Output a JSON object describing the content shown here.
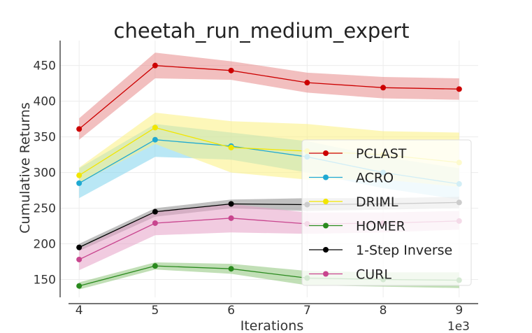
{
  "chart_data": {
    "type": "line",
    "title": "cheetah_run_medium_expert",
    "xlabel": "Iterations",
    "ylabel": "Cumulative Returns",
    "x_offset_label": "1e3",
    "x": [
      4,
      5,
      6,
      7,
      8,
      9
    ],
    "xlim": [
      3.75,
      9.25
    ],
    "ylim": [
      125,
      485
    ],
    "xticks": [
      "4",
      "5",
      "6",
      "7",
      "8",
      "9"
    ],
    "yticks": [
      "150",
      "200",
      "250",
      "300",
      "350",
      "400",
      "450"
    ],
    "ytick_values": [
      150,
      200,
      250,
      300,
      350,
      400,
      450
    ],
    "grid": true,
    "legend_position": "center-right",
    "series": [
      {
        "name": "PCLAST",
        "color": "#cc0000",
        "band_color": "#e88a8a",
        "values": [
          361,
          450,
          443,
          426,
          419,
          417
        ],
        "lower": [
          346,
          432,
          430,
          412,
          404,
          402
        ],
        "upper": [
          376,
          468,
          456,
          440,
          434,
          432
        ]
      },
      {
        "name": "ACRO",
        "color": "#1fa9d2",
        "band_color": "#7fd3ec",
        "values": [
          285,
          346,
          337,
          322,
          300,
          284
        ],
        "lower": [
          264,
          322,
          318,
          300,
          278,
          262
        ],
        "upper": [
          306,
          368,
          356,
          344,
          322,
          306
        ]
      },
      {
        "name": "DRIML",
        "color": "#f2e600",
        "band_color": "#fbf080",
        "values": [
          296,
          363,
          335,
          330,
          325,
          314
        ],
        "lower": [
          285,
          340,
          300,
          290,
          290,
          280
        ],
        "upper": [
          307,
          384,
          372,
          368,
          358,
          356
        ]
      },
      {
        "name": "HOMER",
        "color": "#2a8a1e",
        "band_color": "#8ec47a",
        "values": [
          141,
          169,
          165,
          152,
          150,
          149
        ],
        "lower": [
          136,
          164,
          158,
          142,
          140,
          138
        ],
        "upper": [
          146,
          174,
          172,
          162,
          160,
          160
        ]
      },
      {
        "name": "1-Step Inverse",
        "color": "#000000",
        "band_color": "#8c8c8c",
        "values": [
          195,
          245,
          256,
          255,
          256,
          258
        ],
        "lower": [
          190,
          238,
          250,
          246,
          248,
          250
        ],
        "upper": [
          200,
          250,
          262,
          264,
          264,
          266
        ]
      },
      {
        "name": "CURL",
        "color": "#c8458e",
        "band_color": "#e6a1c7",
        "values": [
          178,
          229,
          236,
          228,
          229,
          232
        ],
        "lower": [
          163,
          212,
          216,
          214,
          216,
          220
        ],
        "upper": [
          193,
          246,
          256,
          244,
          244,
          246
        ]
      }
    ]
  }
}
